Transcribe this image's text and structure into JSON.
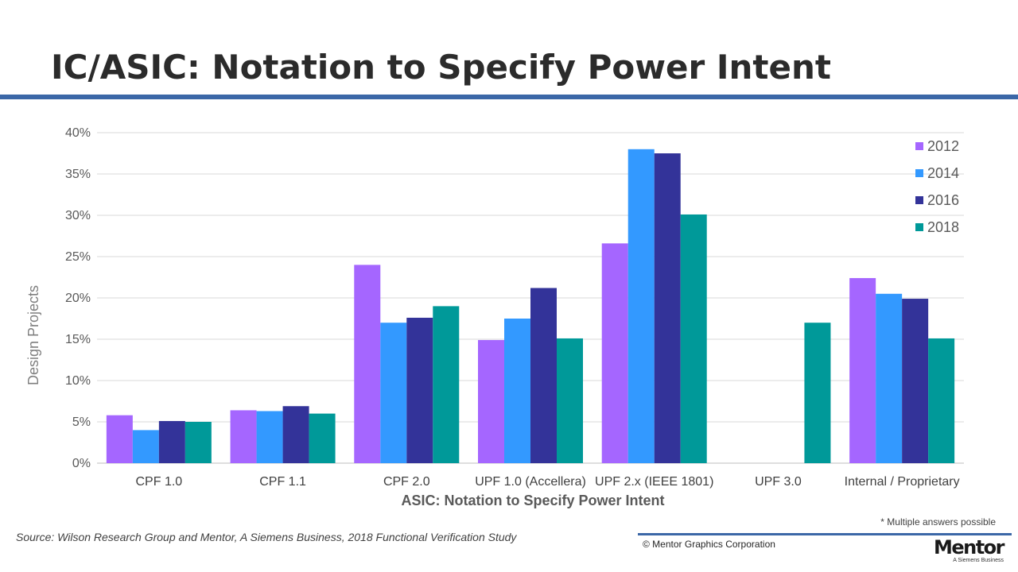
{
  "slide": {
    "title": "IC/ASIC: Notation to Specify Power Intent",
    "note": "* Multiple answers possible",
    "source": "Source:  Wilson Research Group and Mentor, A Siemens Business, 2018 Functional Verification  Study",
    "copyright": "© Mentor Graphics Corporation",
    "logo_text": "Mentor",
    "logo_subtext": "A Siemens Business",
    "rule_color": "#3b67a7"
  },
  "chart_data": {
    "type": "bar",
    "title": "",
    "xlabel": "ASIC: Notation to Specify Power Intent",
    "ylabel": "Design Projects",
    "ylim": [
      0,
      0.4
    ],
    "yticks": [
      0,
      0.05,
      0.1,
      0.15,
      0.2,
      0.25,
      0.3,
      0.35,
      0.4
    ],
    "ytick_labels": [
      "0%",
      "5%",
      "10%",
      "15%",
      "20%",
      "25%",
      "30%",
      "35%",
      "40%"
    ],
    "grid": true,
    "legend_position": "top-right",
    "categories": [
      "CPF 1.0",
      "CPF 1.1",
      "CPF 2.0",
      "UPF 1.0 (Accellera)",
      "UPF 2.x (IEEE 1801)",
      "UPF 3.0",
      "Internal / Proprietary"
    ],
    "series": [
      {
        "name": "2012",
        "color": "#a566ff",
        "values": [
          0.058,
          0.064,
          0.24,
          0.149,
          0.266,
          null,
          0.224
        ]
      },
      {
        "name": "2014",
        "color": "#3399ff",
        "values": [
          0.04,
          0.063,
          0.17,
          0.175,
          0.38,
          null,
          0.205
        ]
      },
      {
        "name": "2016",
        "color": "#333399",
        "values": [
          0.051,
          0.069,
          0.176,
          0.212,
          0.375,
          null,
          0.199
        ]
      },
      {
        "name": "2018",
        "color": "#009999",
        "values": [
          0.05,
          0.06,
          0.19,
          0.151,
          0.301,
          0.17,
          0.151
        ]
      }
    ]
  }
}
